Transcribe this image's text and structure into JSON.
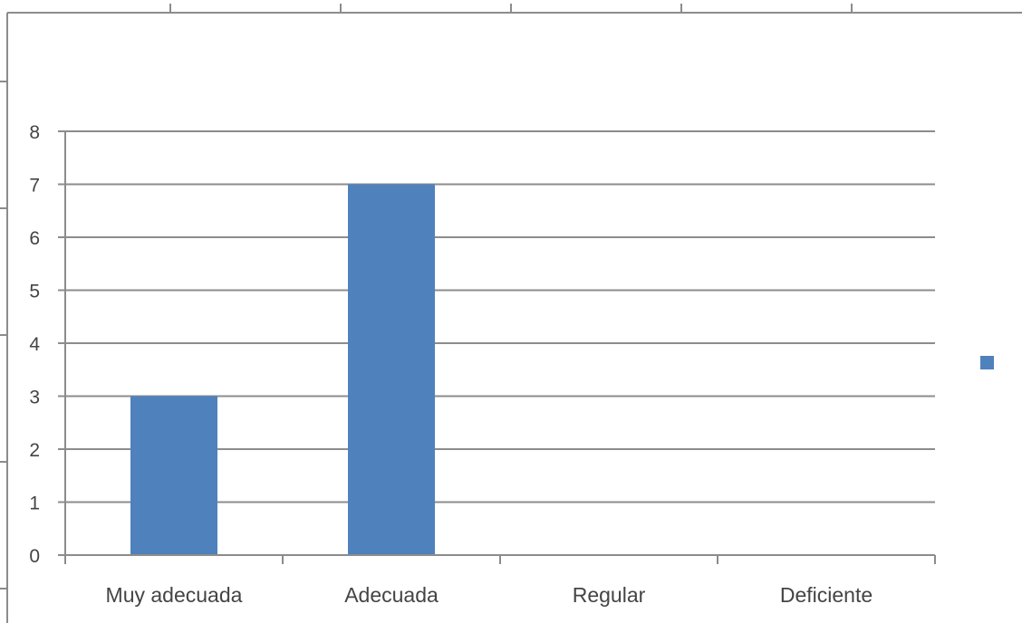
{
  "chart_data": {
    "type": "bar",
    "categories": [
      "Muy adecuada",
      "Adecuada",
      "Regular",
      "Deficiente"
    ],
    "series": [
      {
        "name": "",
        "values": [
          3,
          7,
          0,
          0
        ],
        "color": "#4f81bd"
      }
    ],
    "title": "",
    "xlabel": "",
    "ylabel": "",
    "ylim": [
      0,
      8
    ],
    "yticks": [
      "0",
      "1",
      "2",
      "3",
      "4",
      "5",
      "6",
      "7",
      "8"
    ],
    "grid": true,
    "legend": "right"
  },
  "colors": {
    "bar": "#4f81bd",
    "gridline": "#8c8c8c",
    "text": "#444444"
  }
}
